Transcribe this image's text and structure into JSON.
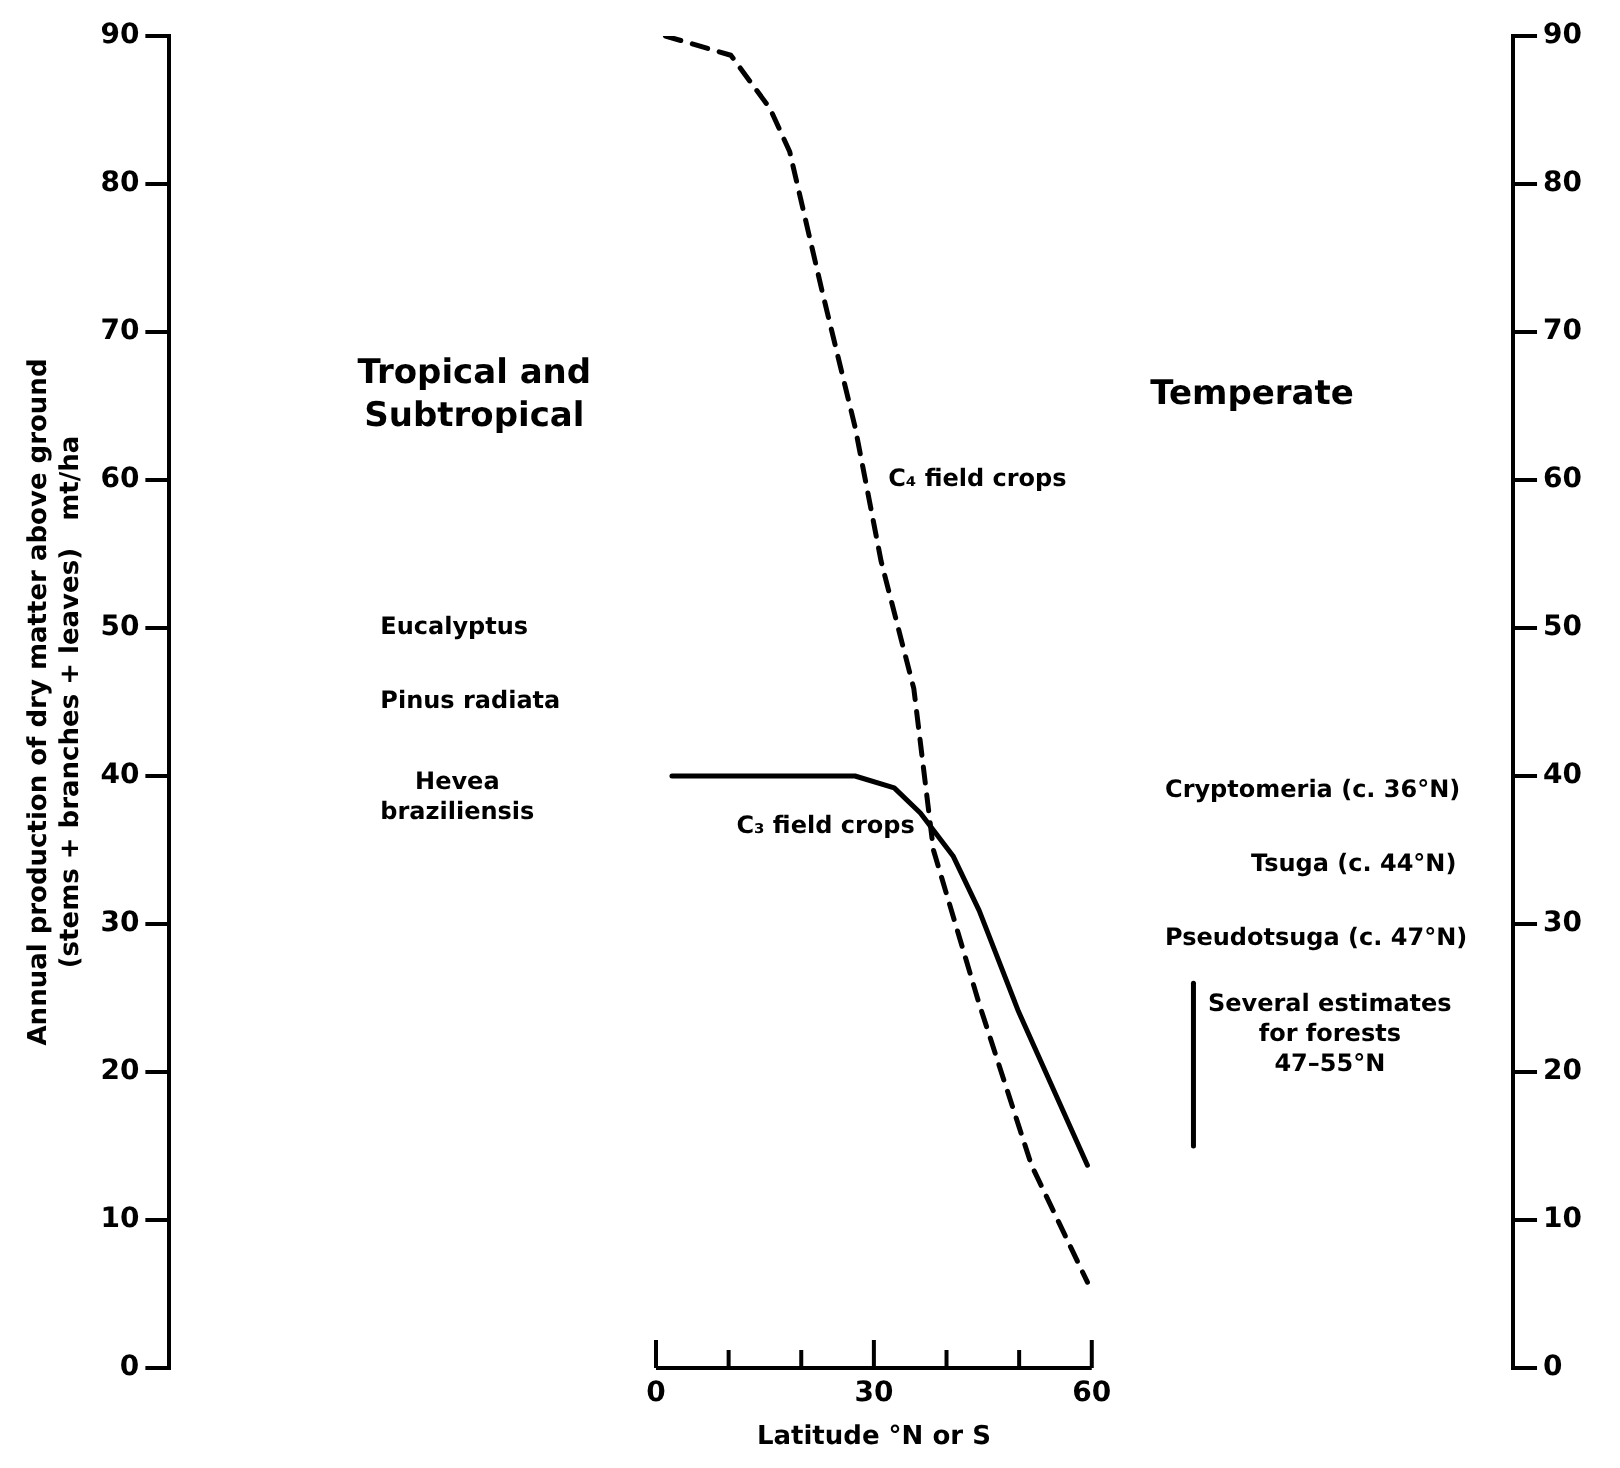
{
  "chart_data": {
    "type": "line",
    "ylabel": "Annual production of dry matter above ground\n(stems + branches + leaves)   mt/ha",
    "xlabel": "Latitude °N or S",
    "xlim": [
      -67,
      118
    ],
    "xticks": [
      0,
      {
        "value": 10,
        "label": null
      },
      {
        "value": 20,
        "label": null
      },
      30,
      {
        "value": 40,
        "label": null
      },
      {
        "value": 50,
        "label": null
      },
      60
    ],
    "ylim": [
      0,
      90
    ],
    "yticks": [
      0,
      10,
      20,
      30,
      40,
      50,
      60,
      70,
      80,
      90
    ],
    "y2lim": [
      0,
      90
    ],
    "y2ticks": [
      0,
      10,
      20,
      30,
      40,
      50,
      60,
      70,
      80,
      90
    ],
    "grid": false,
    "legend": false,
    "marker": "none",
    "series": [
      {
        "color": "#000000",
        "line_style": "dashed",
        "x": [
          1.3,
          10.3,
          15.7,
          18.4,
          22.9,
          27.4,
          31.0,
          35.5,
          38.2,
          44.5,
          51.7,
          59.4
        ],
        "values": [
          90,
          88.7,
          85.1,
          82.2,
          72.7,
          63.6,
          54.5,
          45.9,
          35.0,
          24.6,
          13.7,
          5.8
        ]
      },
      {
        "color": "#000000",
        "line_style": "solid",
        "x": [
          2.2,
          27.4,
          32.8,
          36.4,
          40.9,
          44.5,
          49.9,
          59.4
        ],
        "values": [
          40,
          40,
          39.2,
          37.5,
          34.6,
          30.9,
          24.1,
          13.7
        ]
      },
      {
        "color": "#000000",
        "line_style": "solid",
        "x": [
          74,
          74
        ],
        "values": [
          15,
          26
        ]
      }
    ],
    "annotations": [
      "Tropical and\nSubtropical",
      "Temperate",
      "Eucalyptus",
      "Pinus radiata",
      "Hevea\nbraziliensis",
      "C₄ field crops",
      "C₃ field crops",
      "Cryptomeria (c. 36°N)",
      "Tsuga (c. 44°N)",
      "Pseudotsuga (c. 47°N)",
      "Several estimates\nfor forests\n47–55°N"
    ]
  }
}
